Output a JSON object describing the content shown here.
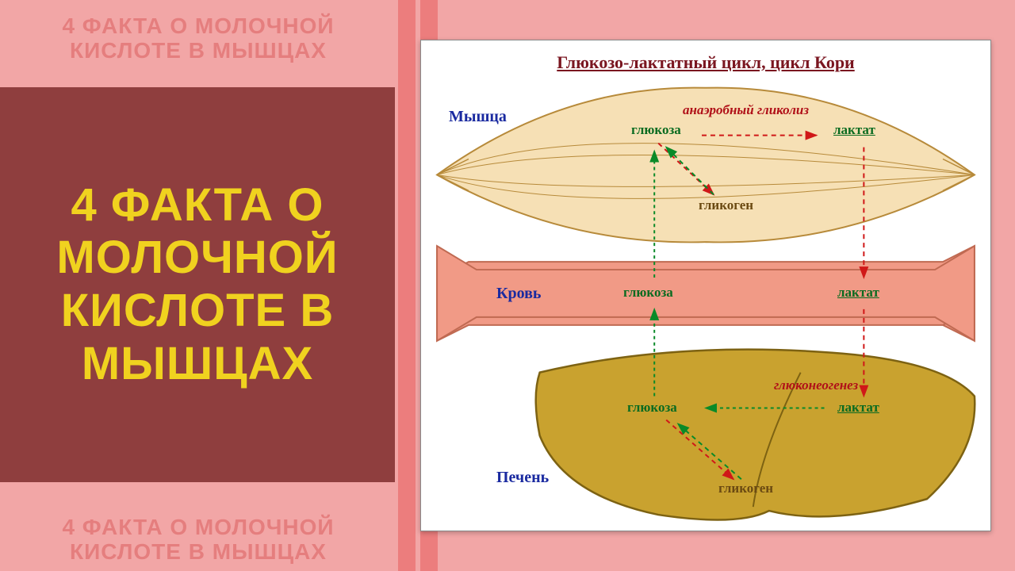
{
  "layout": {
    "bg_color": "#f2a6a6",
    "stripe_color": "#ec7d7d",
    "stripe_positions_x": [
      502,
      530
    ],
    "title_box_bg": "#8f3e3e",
    "title_color": "#f0d21f",
    "watermark_color": "#e57e7e",
    "watermark_text": "4 ФАКТА О МОЛОЧНОЙ КИСЛОТЕ В МЫШЦАХ",
    "main_title": "4 ФАКТА О МОЛОЧНОЙ КИСЛОТЕ В МЫШЦАХ"
  },
  "diagram": {
    "title": "Глюкозо-лактатный цикл, цикл Кори",
    "title_color": "#7a1620",
    "organ_label_color": "#1a2aa0",
    "process_label_color": "#b01018",
    "node_green": "#0a6b20",
    "node_brown": "#6b4a12",
    "muscle_fill": "#f6e0b5",
    "muscle_stroke": "#b78a3a",
    "blood_fill": "#f19a86",
    "blood_stroke": "#c06a52",
    "liver_fill": "#c9a22f",
    "liver_stroke": "#7d6212",
    "arrow_red": "#d01818",
    "arrow_green": "#0a8a28",
    "organs": {
      "muscle": "Мышца",
      "blood": "Кровь",
      "liver": "Печень"
    },
    "processes": {
      "glycolysis": "анаэробный гликолиз",
      "gluconeogenesis": "глюконеогенез"
    },
    "nodes": {
      "glucose": "глюкоза",
      "lactate": "лактат",
      "glycogen": "гликоген"
    }
  }
}
